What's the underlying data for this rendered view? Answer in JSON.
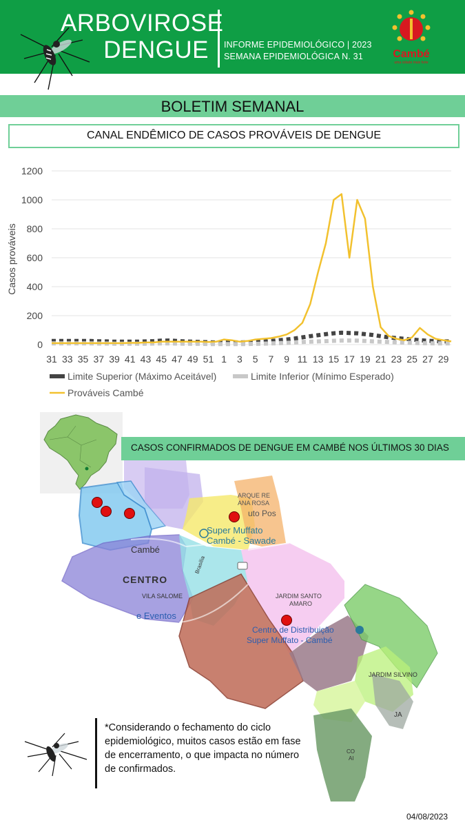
{
  "header": {
    "title_line1": "ARBOVIROSE",
    "title_line2": "DENGUE",
    "subtitle_line1": "INFORME EPIDEMIOLÓGICO | 2023",
    "subtitle_line2": "SEMANA EPIDEMIOLÓGICA  N. 31",
    "logo_text": "Cambé",
    "logo_tagline": "uma cidade mais forte",
    "brand_color": "#0f9e45",
    "accent_color": "#6fcf97"
  },
  "banner": {
    "title": "BOLETIM SEMANAL"
  },
  "chart_section": {
    "title": "CANAL ENDÊMICO DE CASOS PROVÁVEIS DE DENGUE"
  },
  "chart_data": {
    "type": "line",
    "xlabel": "",
    "ylabel": "Casos prováveis",
    "ylim": [
      0,
      1200
    ],
    "yticks": [
      0,
      200,
      400,
      600,
      800,
      1000,
      1200
    ],
    "grid": true,
    "legend_position": "bottom",
    "x": [
      31,
      32,
      33,
      34,
      35,
      36,
      37,
      38,
      39,
      40,
      41,
      42,
      43,
      44,
      45,
      46,
      47,
      48,
      49,
      50,
      51,
      52,
      1,
      2,
      3,
      4,
      5,
      6,
      7,
      8,
      9,
      10,
      11,
      12,
      13,
      14,
      15,
      16,
      17,
      18,
      19,
      20,
      21,
      22,
      23,
      24,
      25,
      26,
      27,
      28,
      29,
      30
    ],
    "x_tick_labels": [
      "31",
      "33",
      "35",
      "37",
      "39",
      "41",
      "43",
      "45",
      "47",
      "49",
      "51",
      "1",
      "3",
      "5",
      "7",
      "9",
      "11",
      "13",
      "15",
      "17",
      "19",
      "21",
      "23",
      "25",
      "27",
      "29"
    ],
    "series": [
      {
        "name": "Limite Superior (Máximo Aceitável)",
        "style": "dashed",
        "color": "#444444",
        "values": [
          25,
          25,
          25,
          25,
          25,
          25,
          23,
          22,
          20,
          20,
          20,
          20,
          22,
          24,
          27,
          28,
          25,
          22,
          20,
          18,
          16,
          15,
          15,
          15,
          15,
          16,
          18,
          20,
          25,
          30,
          35,
          42,
          50,
          58,
          65,
          72,
          78,
          82,
          80,
          78,
          72,
          66,
          58,
          50,
          45,
          40,
          35,
          30,
          26,
          24,
          22,
          22
        ]
      },
      {
        "name": "Limite Inferior (Mínimo Esperado)",
        "style": "dashed",
        "color": "#c8c8c8",
        "values": [
          8,
          8,
          8,
          8,
          8,
          8,
          7,
          7,
          6,
          6,
          6,
          6,
          6,
          7,
          8,
          8,
          7,
          6,
          5,
          5,
          4,
          4,
          4,
          4,
          4,
          4,
          5,
          6,
          8,
          10,
          12,
          15,
          18,
          20,
          22,
          24,
          26,
          28,
          28,
          27,
          25,
          22,
          20,
          18,
          16,
          14,
          12,
          10,
          9,
          8,
          8,
          8
        ]
      },
      {
        "name": "Prováveis Cambé",
        "style": "solid",
        "color": "#f2c12e",
        "values": [
          10,
          10,
          10,
          10,
          10,
          10,
          10,
          10,
          10,
          10,
          12,
          12,
          15,
          15,
          20,
          20,
          20,
          20,
          20,
          20,
          18,
          20,
          35,
          30,
          20,
          25,
          35,
          40,
          45,
          55,
          70,
          100,
          150,
          280,
          500,
          700,
          1000,
          1040,
          600,
          1000,
          870,
          400,
          120,
          60,
          40,
          30,
          50,
          115,
          70,
          40,
          30,
          22
        ]
      }
    ]
  },
  "map_section": {
    "title": "CASOS CONFIRMADOS DE DENGUE EM CAMBÉ NOS ÚLTIMOS 30 DIAS",
    "case_count": 5,
    "labels": {
      "cambe": "Cambé",
      "centro": "CENTRO",
      "vila_salome": "VILA SALOME",
      "eventos": "e Eventos",
      "super_muffato": "Super Muffato",
      "cambe_sawade": "Cambé - Sawade",
      "parque_ana_rosa_1": "ARQUE RE",
      "parque_ana_rosa_2": "ANA ROSA",
      "posto": "uto Pos",
      "jardim_santo_amaro_1": "JARDIM SANTO",
      "jardim_santo_amaro_2": "AMARO",
      "centro_dist_1": "Centro de Distribuição",
      "centro_dist_2": "Super Muffato - Cambé",
      "jardim_silvino": "JARDIM SILVINO",
      "brasilia": "Brasília",
      "ja": "JA",
      "co": "CO",
      "ai": "AI"
    }
  },
  "note": {
    "text": "*Considerando o fechamento do ciclo epidemiológico, muitos casos estão em fase de encerramento, o que impacta no número de confirmados."
  },
  "footer": {
    "date": "04/08/2023"
  }
}
